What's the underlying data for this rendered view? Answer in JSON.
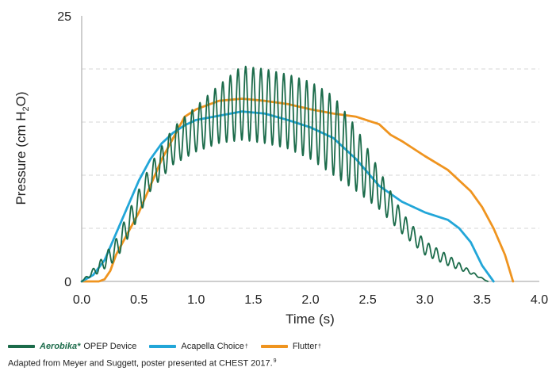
{
  "chart_data": {
    "type": "line",
    "xlabel": "Time (s)",
    "ylabel_main": "Pressure (cm H",
    "ylabel_sub": "2",
    "ylabel_tail": "O)",
    "xlim": [
      0,
      4.0
    ],
    "ylim": [
      0,
      25
    ],
    "x_ticks": [
      "0.0",
      "0.5",
      "1.0",
      "1.5",
      "2.0",
      "2.5",
      "3.0",
      "3.5",
      "4.0"
    ],
    "x_tick_values": [
      0,
      0.5,
      1.0,
      1.5,
      2.0,
      2.5,
      3.0,
      3.5,
      4.0
    ],
    "y_ticks": [
      "0",
      "25"
    ],
    "y_tick_values": [
      0,
      25
    ],
    "y_gridlines": [
      5,
      10,
      15,
      20
    ],
    "grid": "horizontal dashed",
    "legend_position": "bottom",
    "series": [
      {
        "name": "Aerobika* OPEP Device",
        "brand": "Aerobika*",
        "rest": "OPEP Device",
        "sup": "",
        "color": "#1b6b4a",
        "kind": "oscillating",
        "oscillation_hz": 15,
        "envelope_x": [
          0.0,
          0.15,
          0.3,
          0.45,
          0.6,
          0.8,
          1.0,
          1.2,
          1.4,
          1.6,
          1.8,
          2.0,
          2.2,
          2.4,
          2.6,
          2.8,
          3.0,
          3.2,
          3.4,
          3.55
        ],
        "envelope_upper": [
          0.0,
          1.8,
          4.0,
          7.5,
          11.0,
          14.5,
          16.5,
          18.5,
          20.3,
          20.0,
          19.5,
          18.8,
          17.5,
          14.5,
          10.5,
          6.5,
          3.8,
          2.5,
          1.0,
          0.0
        ],
        "envelope_lower": [
          0.0,
          0.8,
          2.0,
          5.0,
          8.5,
          11.0,
          12.2,
          13.0,
          13.3,
          13.0,
          12.5,
          11.5,
          10.0,
          8.5,
          6.8,
          4.5,
          2.5,
          1.5,
          0.7,
          0.0
        ]
      },
      {
        "name": "Acapella Choice",
        "brand": "",
        "rest": "Acapella Choice",
        "sup": "†",
        "color": "#22a6d8",
        "kind": "smooth",
        "x": [
          0.0,
          0.1,
          0.2,
          0.3,
          0.4,
          0.5,
          0.6,
          0.7,
          0.8,
          0.9,
          1.0,
          1.2,
          1.4,
          1.6,
          1.8,
          2.0,
          2.2,
          2.4,
          2.6,
          2.8,
          3.0,
          3.2,
          3.3,
          3.4,
          3.5,
          3.6
        ],
        "y": [
          0.0,
          0.6,
          2.0,
          4.5,
          7.0,
          9.5,
          11.5,
          13.0,
          14.0,
          14.7,
          15.2,
          15.6,
          16.0,
          15.8,
          15.2,
          14.5,
          13.5,
          11.5,
          9.0,
          7.5,
          6.5,
          5.8,
          5.0,
          3.7,
          1.5,
          0.0
        ]
      },
      {
        "name": "Flutter",
        "brand": "",
        "rest": "Flutter",
        "sup": "†",
        "color": "#ef941f",
        "kind": "smooth",
        "x": [
          0.0,
          0.15,
          0.2,
          0.25,
          0.3,
          0.4,
          0.5,
          0.6,
          0.7,
          0.8,
          0.9,
          1.0,
          1.2,
          1.4,
          1.6,
          1.8,
          2.0,
          2.2,
          2.4,
          2.6,
          2.7,
          2.8,
          2.9,
          3.0,
          3.2,
          3.4,
          3.5,
          3.6,
          3.7,
          3.77
        ],
        "y": [
          0.0,
          0.0,
          0.2,
          1.0,
          2.5,
          4.5,
          6.5,
          9.0,
          11.5,
          13.5,
          15.5,
          16.2,
          17.0,
          17.2,
          17.0,
          16.7,
          16.2,
          15.8,
          15.5,
          14.8,
          13.8,
          13.2,
          12.5,
          11.8,
          10.5,
          8.5,
          7.0,
          5.0,
          2.5,
          0.0
        ]
      }
    ]
  },
  "caption": {
    "text": "Adapted from Meyer and Suggett, poster presented at CHEST 2017.",
    "ref": "9"
  }
}
